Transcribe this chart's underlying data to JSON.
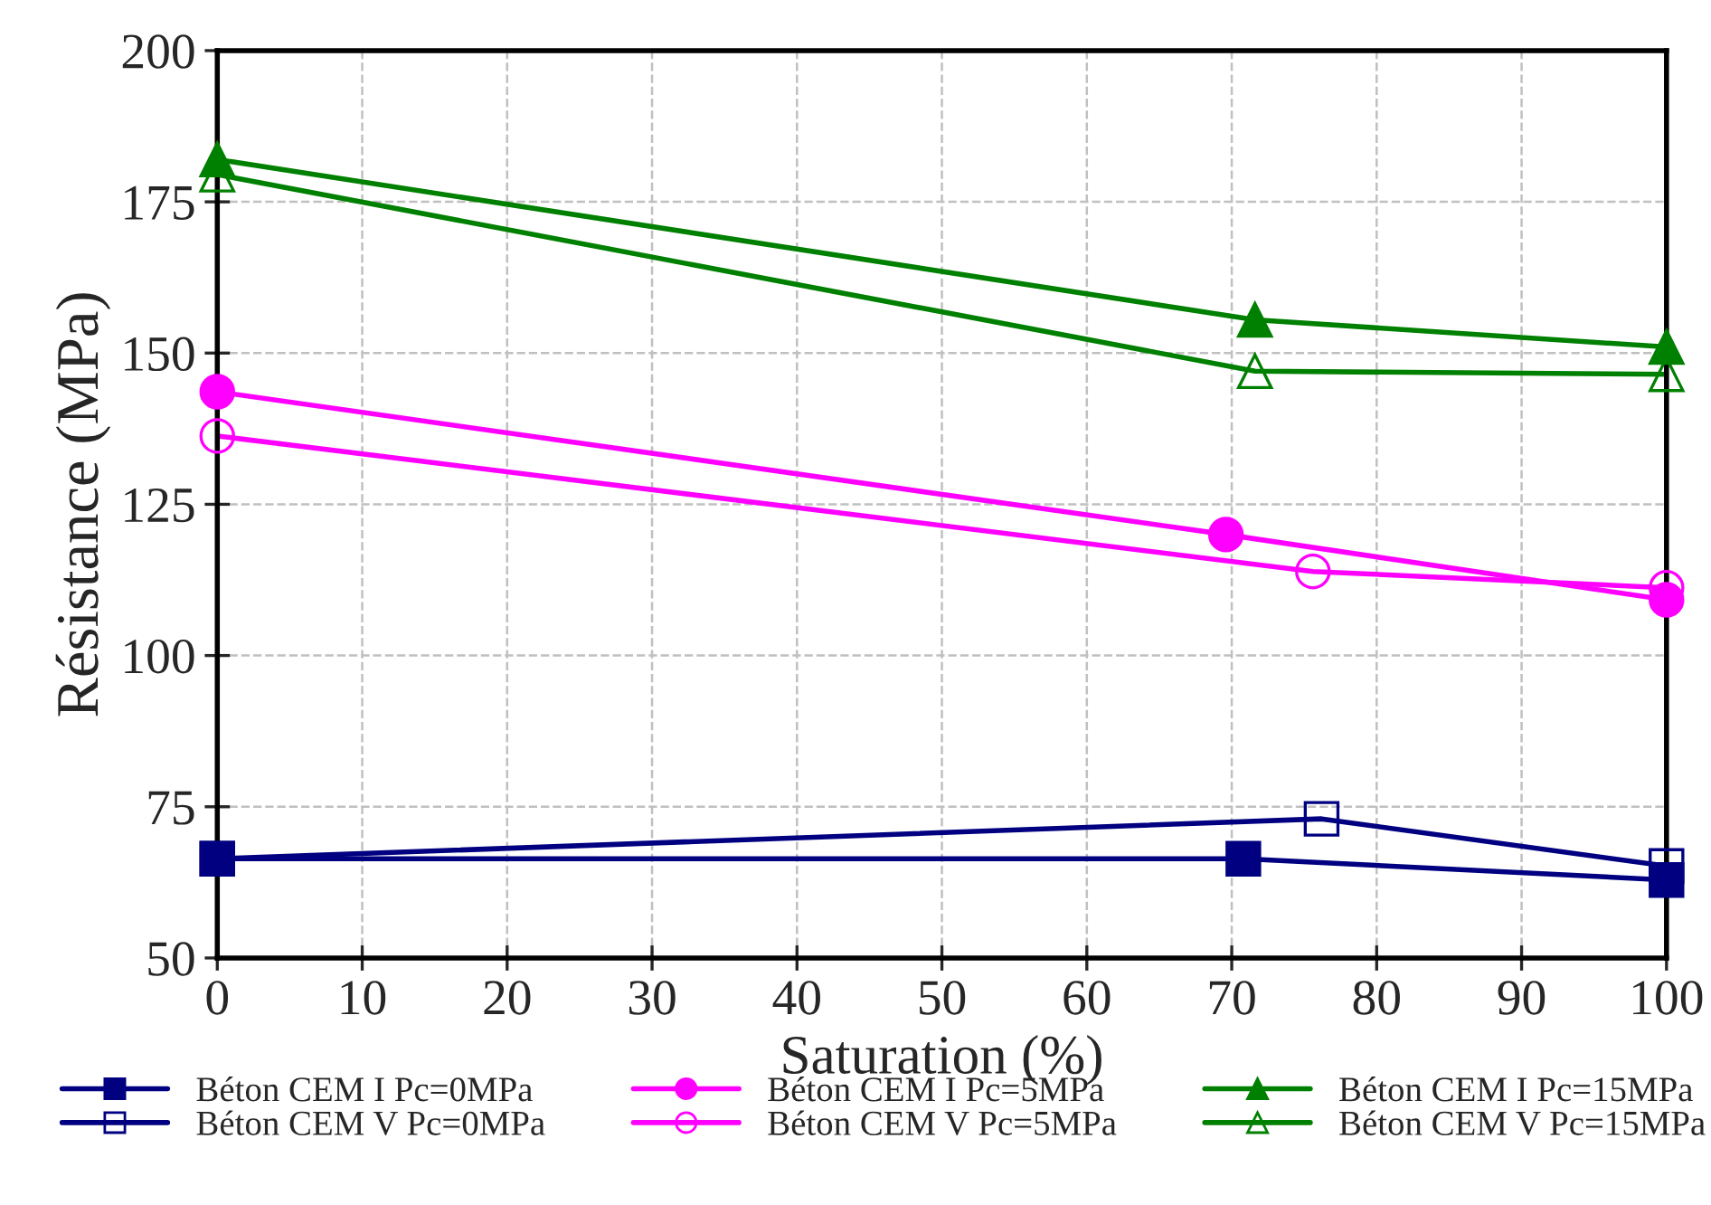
{
  "chart_data": {
    "type": "line",
    "xlabel": "Saturation (%)",
    "ylabel": "Résistance (MPa)",
    "xlim": [
      0,
      100
    ],
    "xticks": [
      0,
      10,
      20,
      30,
      40,
      50,
      60,
      70,
      80,
      90,
      100
    ],
    "ylim": [
      50,
      200
    ],
    "yticks": [
      50,
      75,
      100,
      125,
      150,
      175,
      200
    ],
    "grid": true,
    "legend": "bottom",
    "line_style": "solid",
    "series": [
      {
        "name": "Béton CEM I Pc=0MPa",
        "color": "#000080",
        "marker": "square",
        "x": [
          0,
          70.8,
          100
        ],
        "values": [
          66.4,
          66.4,
          62.9
        ]
      },
      {
        "name": "Béton CEM V Pc=0MPa",
        "color": "#000080",
        "marker": "square",
        "x": [
          0,
          76.2,
          100
        ],
        "values": [
          66.4,
          73,
          65.2
        ]
      },
      {
        "name": "Béton CEM I Pc=5MPa",
        "color": "#ff00ff",
        "marker": "circle",
        "x": [
          0,
          69.6,
          100
        ],
        "values": [
          143.6,
          120,
          109.2
        ]
      },
      {
        "name": "Béton CEM V Pc=5MPa",
        "color": "#ff00ff",
        "marker": "circle",
        "x": [
          0,
          75.6,
          100
        ],
        "values": [
          136.3,
          113.9,
          111.2
        ]
      },
      {
        "name": "Béton CEM I Pc=15MPa",
        "color": "#008000",
        "marker": "triangle",
        "x": [
          0,
          71.6,
          100
        ],
        "values": [
          182,
          155.5,
          151
        ]
      },
      {
        "name": "Béton CEM V Pc=15MPa",
        "color": "#008000",
        "marker": "triangle",
        "x": [
          0,
          71.6,
          100
        ],
        "values": [
          179.5,
          147,
          146.5
        ]
      }
    ]
  }
}
